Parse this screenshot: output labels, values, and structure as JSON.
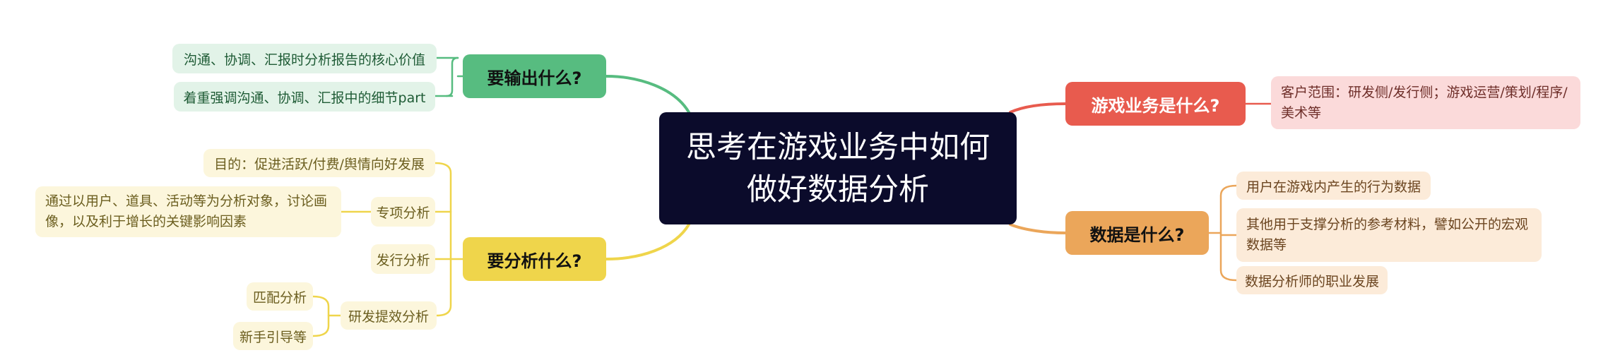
{
  "central": {
    "line1": "思考在游戏业务中如何",
    "line2": "做好数据分析"
  },
  "output": {
    "label": "要输出什么?",
    "items": [
      "沟通、协调、汇报时分析报告的核心价值",
      "着重强调沟通、协调、汇报中的细节part"
    ]
  },
  "analyze": {
    "label": "要分析什么?",
    "purpose": "目的：促进活跃/付费/舆情向好发展",
    "special": "专项分析",
    "special_detail": "通过以用户、道具、活动等为分析对象，讨论画像，以及利于增长的关键影响因素",
    "publish": "发行分析",
    "dev": "研发提效分析",
    "dev_items": [
      "匹配分析",
      "新手引导等"
    ]
  },
  "business": {
    "label": "游戏业务是什么?",
    "detail": "客户范围：研发侧/发行侧；游戏运营/策划/程序/美术等"
  },
  "data_what": {
    "label": "数据是什么?",
    "items": [
      "用户在游戏内产生的行为数据",
      "其他用于支撑分析的参考材料，譬如公开的宏观数据等",
      "数据分析师的职业发展"
    ]
  },
  "colors": {
    "green": "#57bc80",
    "yellow": "#efd54b",
    "red": "#e85b4e",
    "orange": "#eba65a",
    "central": "#0b0b2b"
  }
}
